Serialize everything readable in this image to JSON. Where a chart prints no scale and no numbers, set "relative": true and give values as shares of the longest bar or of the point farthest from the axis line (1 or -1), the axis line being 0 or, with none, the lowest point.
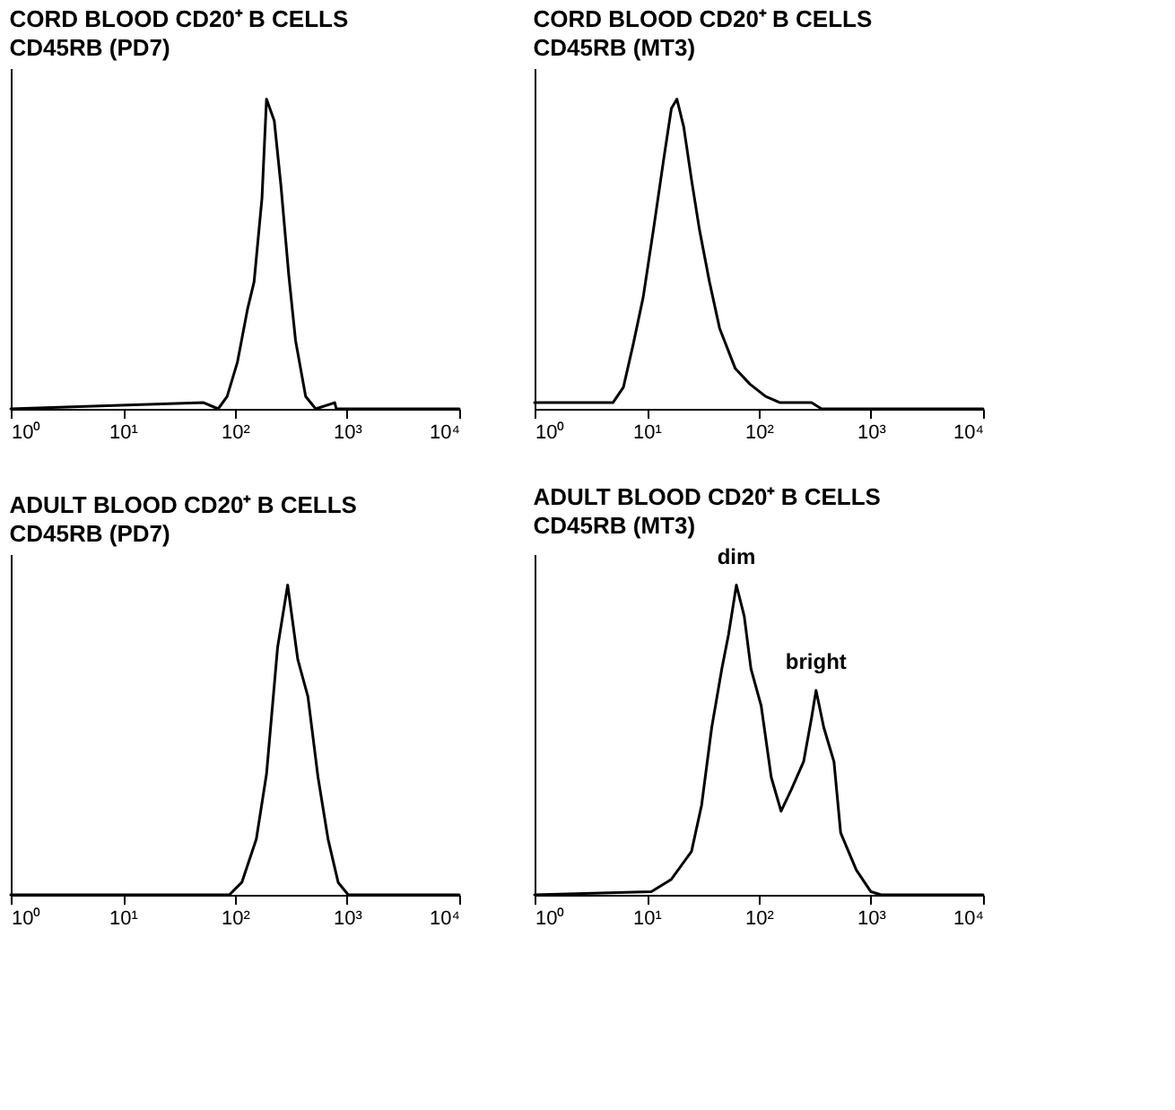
{
  "chart_data": [
    {
      "type": "line",
      "title": "CORD BLOOD CD20⁺ B CELLS",
      "subtitle": "CD45RB (PD7)",
      "relative": true,
      "log": "x",
      "tick_labels": "x",
      "grid": false,
      "marker": "none",
      "line_style": "solid",
      "xlim": [
        1,
        10000
      ],
      "xticks": [
        {
          "value": 1,
          "label": "10⁰"
        },
        {
          "value": 10,
          "label": "10¹"
        },
        {
          "value": 100,
          "label": "10²"
        },
        {
          "value": 1000,
          "label": "10³"
        },
        {
          "value": 10000,
          "label": "10⁴"
        }
      ],
      "series": [
        {
          "color": "#000000",
          "x": [
            1,
            52.5,
            70.8,
            85.1,
            105,
            129,
            148,
            174,
            191,
            224,
            257,
            302,
            347,
            427,
            525,
            776,
            800,
            10000
          ],
          "values": [
            0,
            0.02,
            0,
            0.04,
            0.15,
            0.32,
            0.41,
            0.68,
            1,
            0.93,
            0.72,
            0.43,
            0.22,
            0.04,
            0,
            0.02,
            0,
            0
          ]
        }
      ]
    },
    {
      "type": "line",
      "title": "CORD BLOOD CD20⁺ B CELLS",
      "subtitle": "CD45RB (MT3)",
      "relative": true,
      "log": "x",
      "tick_labels": "x",
      "grid": false,
      "marker": "none",
      "line_style": "solid",
      "xlim": [
        1,
        10000
      ],
      "xticks": [
        {
          "value": 1,
          "label": "10⁰"
        },
        {
          "value": 10,
          "label": "10¹"
        },
        {
          "value": 100,
          "label": "10²"
        },
        {
          "value": 1000,
          "label": "10³"
        },
        {
          "value": 10000,
          "label": "10⁴"
        }
      ],
      "series": [
        {
          "color": "#000000",
          "x": [
            1,
            5,
            6.2,
            7.6,
            9.3,
            11.5,
            14.1,
            16.6,
            18.6,
            21.4,
            25.1,
            29.5,
            36.3,
            44.7,
            61.7,
            83.2,
            115,
            155,
            295,
            363,
            10000
          ],
          "values": [
            0.02,
            0.02,
            0.07,
            0.21,
            0.36,
            0.58,
            0.8,
            0.97,
            1,
            0.91,
            0.74,
            0.58,
            0.41,
            0.26,
            0.13,
            0.08,
            0.04,
            0.02,
            0.02,
            0,
            0
          ]
        }
      ]
    },
    {
      "type": "line",
      "title": "ADULT BLOOD CD20⁺ B CELLS",
      "subtitle": "CD45RB (PD7)",
      "relative": true,
      "log": "x",
      "tick_labels": "x",
      "grid": false,
      "marker": "none",
      "line_style": "solid",
      "xlim": [
        1,
        10000
      ],
      "xticks": [
        {
          "value": 1,
          "label": "10⁰"
        },
        {
          "value": 10,
          "label": "10¹"
        },
        {
          "value": 100,
          "label": "10²"
        },
        {
          "value": 1000,
          "label": "10³"
        },
        {
          "value": 10000,
          "label": "10⁴"
        }
      ],
      "series": [
        {
          "color": "#000000",
          "x": [
            1,
            89.1,
            115,
            155,
            191,
            240,
            295,
            363,
            447,
            550,
            676,
            832,
            1023,
            10000
          ],
          "values": [
            0,
            0,
            0.04,
            0.18,
            0.39,
            0.8,
            1,
            0.76,
            0.64,
            0.38,
            0.18,
            0.04,
            0,
            0
          ]
        }
      ]
    },
    {
      "type": "line",
      "title": "ADULT BLOOD CD20⁺ B CELLS",
      "subtitle": "CD45RB (MT3)",
      "relative": true,
      "log": "x",
      "tick_labels": "x",
      "grid": false,
      "marker": "none",
      "line_style": "solid",
      "xlim": [
        1,
        10000
      ],
      "xticks": [
        {
          "value": 1,
          "label": "10⁰"
        },
        {
          "value": 10,
          "label": "10¹"
        },
        {
          "value": 100,
          "label": "10²"
        },
        {
          "value": 1000,
          "label": "10³"
        },
        {
          "value": 10000,
          "label": "10⁴"
        }
      ],
      "annotations": [
        {
          "text": "dim",
          "x": 63.1,
          "y": 1
        },
        {
          "text": "bright",
          "x": 324,
          "y": 0.66
        }
      ],
      "series": [
        {
          "color": "#000000",
          "x": [
            1,
            11,
            16.6,
            25.1,
            30.9,
            38,
            46.8,
            53.7,
            63.1,
            74.1,
            85.1,
            105,
            129,
            158,
            195,
            251,
            295,
            324,
            380,
            468,
            537,
            741,
            1000,
            1230,
            10000
          ],
          "values": [
            0,
            0.01,
            0.05,
            0.14,
            0.29,
            0.54,
            0.73,
            0.84,
            1,
            0.9,
            0.73,
            0.61,
            0.38,
            0.27,
            0.34,
            0.43,
            0.57,
            0.66,
            0.54,
            0.43,
            0.2,
            0.08,
            0.01,
            0,
            0
          ]
        }
      ]
    }
  ]
}
